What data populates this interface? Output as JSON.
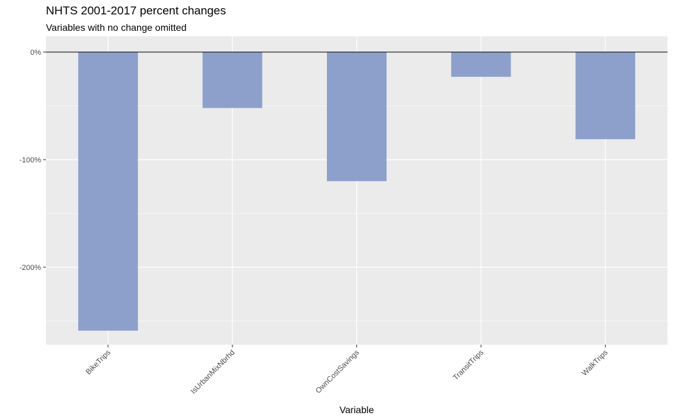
{
  "chart_data": {
    "type": "bar",
    "title": "NHTS 2001-2017 percent changes",
    "subtitle": "Variables with no change omitted",
    "xlabel": "Variable",
    "ylabel": "",
    "categories": [
      "BikeTrips",
      "IsUrbanMixNbrhd",
      "OwnCostSavings",
      "TransitTrips",
      "WalkTrips"
    ],
    "values": [
      -259,
      -52,
      -120,
      -23,
      -81
    ],
    "unit": "%",
    "ylim": [
      -270,
      0
    ],
    "yticks": [
      0,
      -100,
      -200
    ],
    "ytick_labels": [
      "0%",
      "-100%",
      "-200%"
    ],
    "grid": true,
    "legend": "none",
    "colors": {
      "bar": "#8DA0CB",
      "panel": "#EBEBEB",
      "grid_major": "#FFFFFF",
      "zero_line": "#000000"
    }
  }
}
